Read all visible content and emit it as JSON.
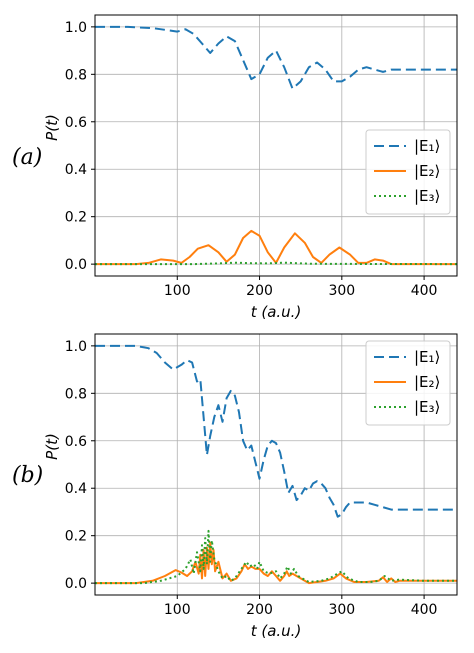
{
  "colors": {
    "E1": "#1f77b4",
    "E2": "#ff7f0e",
    "E3": "#2ca02c",
    "grid": "#b0b0b0"
  },
  "chart_data": [
    {
      "type": "line",
      "panel_label": "(a)",
      "xlabel": "t (a.u.)",
      "ylabel": "P(t)",
      "xlim": [
        0,
        440
      ],
      "ylim": [
        -0.05,
        1.05
      ],
      "xticks": [
        "100",
        "200",
        "300",
        "400"
      ],
      "yticks": [
        "0.0",
        "0.2",
        "0.4",
        "0.6",
        "0.8",
        "1.0"
      ],
      "grid": true,
      "legend": "center-right",
      "series": [
        {
          "name": "|E₁⟩",
          "style": "dashed",
          "x": [
            0,
            40,
            70,
            90,
            100,
            110,
            120,
            130,
            140,
            150,
            160,
            170,
            180,
            190,
            200,
            210,
            220,
            230,
            240,
            250,
            260,
            270,
            280,
            290,
            300,
            310,
            320,
            330,
            340,
            350,
            360,
            380,
            400,
            420,
            440
          ],
          "y": [
            1.0,
            1.0,
            0.995,
            0.985,
            0.98,
            0.99,
            0.97,
            0.93,
            0.89,
            0.93,
            0.96,
            0.94,
            0.86,
            0.78,
            0.8,
            0.87,
            0.9,
            0.83,
            0.74,
            0.77,
            0.83,
            0.85,
            0.82,
            0.77,
            0.77,
            0.79,
            0.82,
            0.83,
            0.82,
            0.81,
            0.82,
            0.82,
            0.82,
            0.82,
            0.82
          ]
        },
        {
          "name": "|E₂⟩",
          "style": "solid",
          "x": [
            0,
            50,
            65,
            80,
            95,
            105,
            115,
            125,
            138,
            150,
            160,
            170,
            180,
            190,
            200,
            210,
            220,
            230,
            243,
            255,
            265,
            275,
            285,
            297,
            310,
            320,
            330,
            340,
            350,
            360,
            380,
            400,
            440
          ],
          "y": [
            0.0,
            0.0,
            0.005,
            0.02,
            0.015,
            0.005,
            0.03,
            0.065,
            0.08,
            0.05,
            0.01,
            0.04,
            0.11,
            0.14,
            0.12,
            0.05,
            0.005,
            0.07,
            0.13,
            0.09,
            0.03,
            0.005,
            0.04,
            0.07,
            0.04,
            0.005,
            0.005,
            0.02,
            0.015,
            0.0,
            0.0,
            0.0,
            0.0
          ]
        },
        {
          "name": "|E₃⟩",
          "style": "dotted",
          "x": [
            0,
            120,
            150,
            170,
            190,
            210,
            230,
            245,
            260,
            290,
            440
          ],
          "y": [
            0.0,
            0.0,
            0.003,
            0.006,
            0.004,
            0.003,
            0.006,
            0.004,
            0.002,
            0.001,
            0.0
          ]
        }
      ]
    },
    {
      "type": "line",
      "panel_label": "(b)",
      "xlabel": "t (a.u.)",
      "ylabel": "P(t)",
      "xlim": [
        0,
        440
      ],
      "ylim": [
        -0.05,
        1.05
      ],
      "xticks": [
        "100",
        "200",
        "300",
        "400"
      ],
      "yticks": [
        "0.0",
        "0.2",
        "0.4",
        "0.6",
        "0.8",
        "1.0"
      ],
      "grid": true,
      "legend": "top-right",
      "series": [
        {
          "name": "|E₁⟩",
          "style": "dashed",
          "x": [
            0,
            50,
            65,
            75,
            85,
            95,
            105,
            112,
            118,
            124,
            128,
            132,
            136,
            140,
            145,
            150,
            155,
            160,
            165,
            170,
            175,
            180,
            185,
            190,
            195,
            200,
            205,
            210,
            215,
            220,
            225,
            230,
            235,
            240,
            245,
            250,
            255,
            260,
            265,
            270,
            275,
            280,
            285,
            290,
            295,
            300,
            305,
            310,
            320,
            330,
            340,
            350,
            360,
            370,
            380,
            400,
            420,
            440
          ],
          "y": [
            1.0,
            1.0,
            0.99,
            0.97,
            0.93,
            0.9,
            0.92,
            0.94,
            0.93,
            0.85,
            0.86,
            0.7,
            0.54,
            0.62,
            0.7,
            0.75,
            0.68,
            0.78,
            0.81,
            0.79,
            0.72,
            0.6,
            0.56,
            0.58,
            0.51,
            0.44,
            0.52,
            0.58,
            0.6,
            0.59,
            0.55,
            0.47,
            0.38,
            0.41,
            0.35,
            0.37,
            0.4,
            0.39,
            0.42,
            0.43,
            0.42,
            0.4,
            0.36,
            0.33,
            0.28,
            0.29,
            0.32,
            0.34,
            0.34,
            0.34,
            0.33,
            0.32,
            0.31,
            0.31,
            0.31,
            0.31,
            0.31,
            0.31
          ]
        },
        {
          "name": "|E₂⟩",
          "style": "solid",
          "x": [
            0,
            50,
            70,
            85,
            98,
            105,
            112,
            118,
            122,
            126,
            128,
            130,
            132,
            134,
            136,
            138,
            140,
            142,
            144,
            146,
            150,
            155,
            160,
            165,
            172,
            178,
            182,
            186,
            190,
            195,
            200,
            205,
            210,
            215,
            220,
            225,
            230,
            233,
            236,
            240,
            245,
            250,
            255,
            260,
            270,
            280,
            290,
            298,
            305,
            315,
            330,
            345,
            350,
            355,
            360,
            365,
            370,
            380,
            400,
            440
          ],
          "y": [
            0.0,
            0.0,
            0.01,
            0.03,
            0.055,
            0.045,
            0.03,
            0.05,
            0.09,
            0.04,
            0.12,
            0.02,
            0.14,
            0.03,
            0.15,
            0.06,
            0.17,
            0.08,
            0.14,
            0.05,
            0.09,
            0.02,
            0.04,
            0.01,
            0.02,
            0.05,
            0.08,
            0.06,
            0.07,
            0.06,
            0.06,
            0.04,
            0.03,
            0.05,
            0.03,
            0.01,
            0.03,
            0.05,
            0.03,
            0.04,
            0.03,
            0.02,
            0.01,
            0.0,
            0.005,
            0.01,
            0.02,
            0.04,
            0.02,
            0.005,
            0.005,
            0.01,
            0.025,
            0.005,
            0.02,
            0.005,
            0.01,
            0.01,
            0.01,
            0.01
          ]
        },
        {
          "name": "|E₃⟩",
          "style": "dotted",
          "x": [
            0,
            60,
            80,
            100,
            110,
            116,
            120,
            124,
            128,
            130,
            132,
            134,
            136,
            138,
            140,
            142,
            145,
            150,
            155,
            160,
            165,
            170,
            178,
            184,
            188,
            193,
            197,
            200,
            205,
            212,
            220,
            225,
            230,
            234,
            238,
            242,
            247,
            252,
            260,
            275,
            285,
            295,
            300,
            308,
            320,
            335,
            345,
            352,
            360,
            370,
            400,
            440
          ],
          "y": [
            0.0,
            0.0,
            0.01,
            0.03,
            0.06,
            0.1,
            0.04,
            0.13,
            0.05,
            0.16,
            0.06,
            0.19,
            0.08,
            0.22,
            0.09,
            0.18,
            0.1,
            0.05,
            0.02,
            0.03,
            0.01,
            0.02,
            0.06,
            0.09,
            0.07,
            0.08,
            0.06,
            0.09,
            0.05,
            0.04,
            0.05,
            0.02,
            0.04,
            0.07,
            0.04,
            0.06,
            0.03,
            0.02,
            0.005,
            0.01,
            0.02,
            0.04,
            0.05,
            0.02,
            0.005,
            0.005,
            0.01,
            0.03,
            0.01,
            0.015,
            0.01,
            0.01
          ]
        }
      ]
    }
  ]
}
